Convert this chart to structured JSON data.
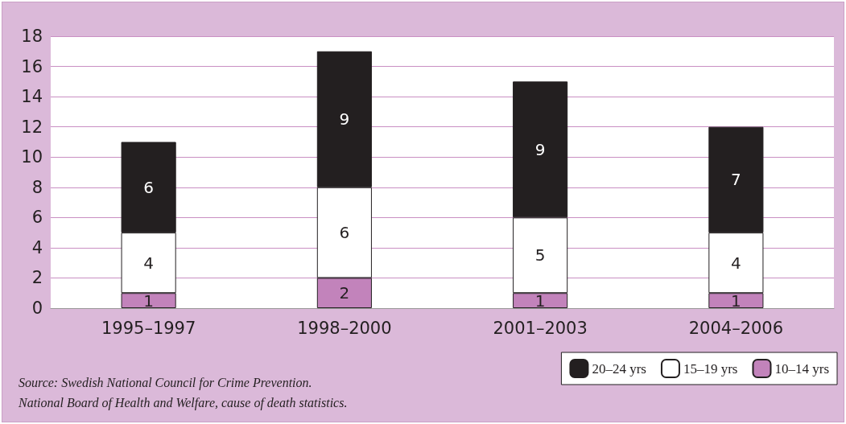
{
  "chart_data": {
    "type": "bar",
    "stacked": true,
    "categories": [
      "1995–1997",
      "1998–2000",
      "2001–2003",
      "2004–2006"
    ],
    "series": [
      {
        "name": "10–14 yrs",
        "color": "#c283bb",
        "values": [
          1,
          2,
          1,
          1
        ]
      },
      {
        "name": "15–19 yrs",
        "color": "#ffffff",
        "values": [
          4,
          6,
          5,
          4
        ]
      },
      {
        "name": "20–24 yrs",
        "color": "#231f20",
        "values": [
          6,
          9,
          9,
          7
        ]
      }
    ],
    "ylim": [
      0,
      18
    ],
    "yticks": [
      0,
      2,
      4,
      6,
      8,
      10,
      12,
      14,
      16,
      18
    ],
    "grid": "y",
    "legend": "bottom right",
    "data_labels": true,
    "annotations": [
      "Source: Swedish National Council for Crime Prevention.",
      "National Board of Health and Welfare, cause of death statistics."
    ]
  }
}
